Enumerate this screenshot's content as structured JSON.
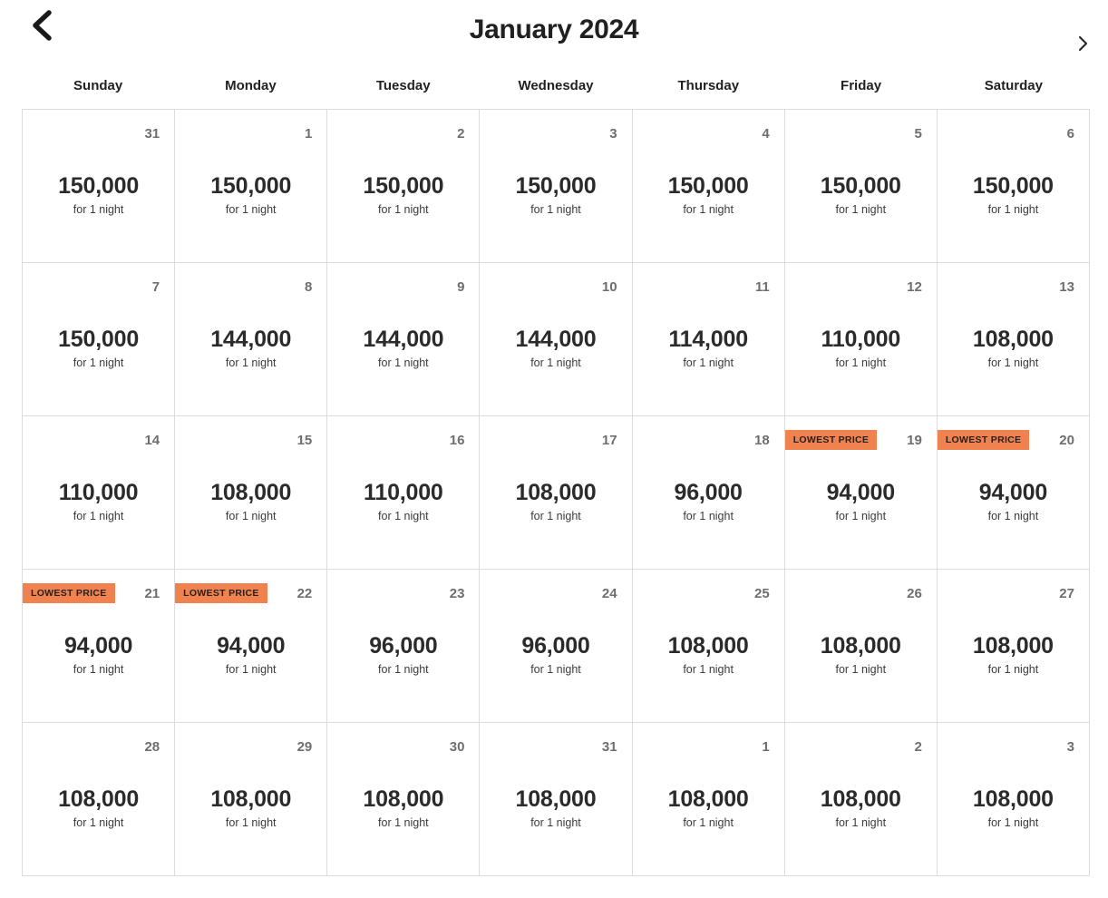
{
  "header": {
    "title": "January 2024",
    "prev_icon": "chevron-left",
    "next_icon": "chevron-right"
  },
  "weekdays": [
    "Sunday",
    "Monday",
    "Tuesday",
    "Wednesday",
    "Thursday",
    "Friday",
    "Saturday"
  ],
  "badge_label": "LOWEST PRICE",
  "price_unit": "for 1 night",
  "colors": {
    "badge_bg": "#F0824F",
    "badge_text": "#26211E",
    "title": "#221F20",
    "day_number": "#6E6E6E",
    "price_text": "#2B2B2B",
    "grid_border": "#DCDCDC"
  },
  "weeks": [
    {
      "cells": [
        {
          "day": "31",
          "price": "150,000",
          "lowest_price": false
        },
        {
          "day": "1",
          "price": "150,000",
          "lowest_price": false
        },
        {
          "day": "2",
          "price": "150,000",
          "lowest_price": false
        },
        {
          "day": "3",
          "price": "150,000",
          "lowest_price": false
        },
        {
          "day": "4",
          "price": "150,000",
          "lowest_price": false
        },
        {
          "day": "5",
          "price": "150,000",
          "lowest_price": false
        },
        {
          "day": "6",
          "price": "150,000",
          "lowest_price": false
        }
      ]
    },
    {
      "cells": [
        {
          "day": "7",
          "price": "150,000",
          "lowest_price": false
        },
        {
          "day": "8",
          "price": "144,000",
          "lowest_price": false
        },
        {
          "day": "9",
          "price": "144,000",
          "lowest_price": false
        },
        {
          "day": "10",
          "price": "144,000",
          "lowest_price": false
        },
        {
          "day": "11",
          "price": "114,000",
          "lowest_price": false
        },
        {
          "day": "12",
          "price": "110,000",
          "lowest_price": false
        },
        {
          "day": "13",
          "price": "108,000",
          "lowest_price": false
        }
      ]
    },
    {
      "cells": [
        {
          "day": "14",
          "price": "110,000",
          "lowest_price": false
        },
        {
          "day": "15",
          "price": "108,000",
          "lowest_price": false
        },
        {
          "day": "16",
          "price": "110,000",
          "lowest_price": false
        },
        {
          "day": "17",
          "price": "108,000",
          "lowest_price": false
        },
        {
          "day": "18",
          "price": "96,000",
          "lowest_price": false
        },
        {
          "day": "19",
          "price": "94,000",
          "lowest_price": true
        },
        {
          "day": "20",
          "price": "94,000",
          "lowest_price": true
        }
      ]
    },
    {
      "cells": [
        {
          "day": "21",
          "price": "94,000",
          "lowest_price": true
        },
        {
          "day": "22",
          "price": "94,000",
          "lowest_price": true
        },
        {
          "day": "23",
          "price": "96,000",
          "lowest_price": false
        },
        {
          "day": "24",
          "price": "96,000",
          "lowest_price": false
        },
        {
          "day": "25",
          "price": "108,000",
          "lowest_price": false
        },
        {
          "day": "26",
          "price": "108,000",
          "lowest_price": false
        },
        {
          "day": "27",
          "price": "108,000",
          "lowest_price": false
        }
      ]
    },
    {
      "cells": [
        {
          "day": "28",
          "price": "108,000",
          "lowest_price": false
        },
        {
          "day": "29",
          "price": "108,000",
          "lowest_price": false
        },
        {
          "day": "30",
          "price": "108,000",
          "lowest_price": false
        },
        {
          "day": "31",
          "price": "108,000",
          "lowest_price": false
        },
        {
          "day": "1",
          "price": "108,000",
          "lowest_price": false
        },
        {
          "day": "2",
          "price": "108,000",
          "lowest_price": false
        },
        {
          "day": "3",
          "price": "108,000",
          "lowest_price": false
        }
      ]
    }
  ]
}
